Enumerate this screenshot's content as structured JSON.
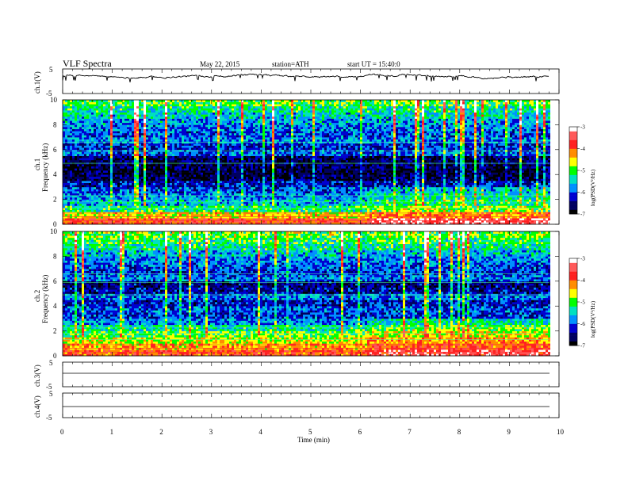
{
  "header": {
    "title": "VLF  Spectra",
    "date": "May 22, 2015",
    "station": "station=ATH",
    "start": "start  UT  =    15:40:0"
  },
  "x_axis": {
    "label": "Time  (min)",
    "ticks": [
      "0",
      "1",
      "2",
      "3",
      "4",
      "5",
      "6",
      "7",
      "8",
      "9",
      "10"
    ],
    "range": [
      0,
      10
    ],
    "data_end_min": 9.8
  },
  "panels": {
    "ch1_wave": {
      "ylabel": "ch.1(V)",
      "top_tick": "5",
      "bottom_tick": "-5"
    },
    "ch1_spec": {
      "ylabel_top": "ch.1",
      "ylabel": "Frequency  (kHz)",
      "ticks": [
        "0",
        "2",
        "4",
        "6",
        "8",
        "10"
      ]
    },
    "ch2_spec": {
      "ylabel_top": "ch.2",
      "ylabel": "Frequency  (kHz)",
      "ticks": [
        "0",
        "2",
        "4",
        "6",
        "8",
        "10"
      ]
    },
    "ch3_wave": {
      "ylabel": "ch.3(V)",
      "top_tick": "5",
      "bottom_tick": "-5"
    },
    "ch4_wave": {
      "ylabel": "ch.4(V)",
      "top_tick": "5",
      "bottom_tick": "-5"
    }
  },
  "colorbar": {
    "label": "log(PSD(V²/Hz)",
    "ticks": [
      "-3",
      "-4",
      "-5",
      "-6",
      "-7"
    ],
    "colors": [
      "#ffffff",
      "#ff5a5a",
      "#ff2020",
      "#ff8c00",
      "#ffff00",
      "#00ff00",
      "#00e0c0",
      "#0090ff",
      "#0000d0",
      "#000060",
      "#000000"
    ]
  },
  "chart_data": [
    {
      "type": "line",
      "name": "ch.1 waveform",
      "x_range": [
        0,
        9.8
      ],
      "ylim": [
        -5,
        5
      ],
      "y_level_approx": 2.0,
      "xlabel": "Time  (min)",
      "ylabel": "ch.1(V)"
    },
    {
      "type": "heatmap",
      "name": "ch.1 spectrogram",
      "x_range": [
        0,
        9.8
      ],
      "ylim": [
        0,
        10
      ],
      "ylabel": "Frequency  (kHz)",
      "colorbar_range": [
        -7,
        -3
      ],
      "colorbar_label": "log(PSD(V²/Hz)",
      "freq_kHz": [
        0.25,
        0.75,
        1.25,
        1.75,
        2.25,
        2.75,
        3.25,
        3.75,
        4.25,
        4.75,
        5.25,
        5.75,
        6.25,
        6.75,
        7.25,
        7.75,
        8.25,
        8.75,
        9.25,
        9.75
      ],
      "mean_log_psd": [
        -3.8,
        -4.5,
        -5.2,
        -5.6,
        -5.8,
        -6.0,
        -6.3,
        -6.7,
        -6.8,
        -6.7,
        -6.6,
        -6.0,
        -6.2,
        -5.8,
        -6.0,
        -5.9,
        -5.7,
        -5.5,
        -5.3,
        -5.0
      ],
      "note_times_min": [
        6.1
      ]
    },
    {
      "type": "heatmap",
      "name": "ch.2 spectrogram",
      "x_range": [
        0,
        9.8
      ],
      "ylim": [
        0,
        10
      ],
      "ylabel": "Frequency  (kHz)",
      "colorbar_range": [
        -7,
        -3
      ],
      "colorbar_label": "log(PSD(V²/Hz)",
      "freq_kHz": [
        0.25,
        0.75,
        1.25,
        1.75,
        2.25,
        2.75,
        3.25,
        3.75,
        4.25,
        4.75,
        5.25,
        5.75,
        6.25,
        6.75,
        7.25,
        7.75,
        8.25,
        8.75,
        9.25,
        9.75
      ],
      "mean_log_psd": [
        -3.9,
        -4.3,
        -4.6,
        -5.0,
        -5.3,
        -5.8,
        -6.1,
        -6.0,
        -6.3,
        -5.9,
        -6.4,
        -6.5,
        -5.9,
        -6.1,
        -6.0,
        -5.8,
        -5.6,
        -5.3,
        -5.1,
        -4.9
      ],
      "note_times_min": [
        6.1
      ]
    },
    {
      "type": "line",
      "name": "ch.3 waveform",
      "x_range": [
        0,
        9.8
      ],
      "ylim": [
        -5,
        5
      ],
      "y_level_approx": 0.0,
      "ylabel": "ch.3(V)"
    },
    {
      "type": "line",
      "name": "ch.4 waveform",
      "x_range": [
        0,
        9.8
      ],
      "ylim": [
        -5,
        5
      ],
      "y_level_approx": 0.0,
      "ylabel": "ch.4(V)"
    }
  ]
}
